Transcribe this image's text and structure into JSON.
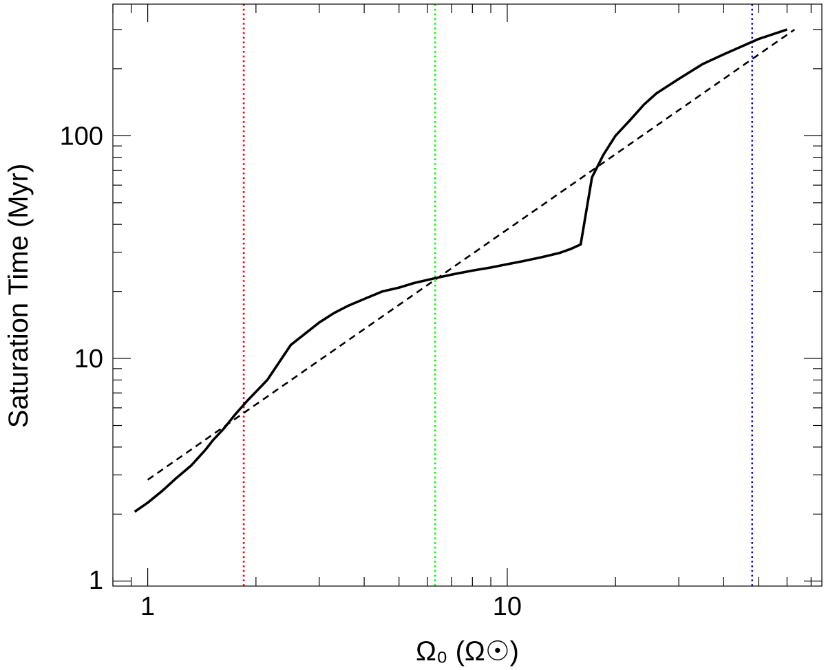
{
  "chart_data": {
    "type": "line",
    "xlabel": "Ω₀  (Ω☉)",
    "ylabel": "Saturation Time (Myr)",
    "x_scale": "log",
    "y_scale": "log",
    "xlim": [
      0.8,
      75
    ],
    "ylim": [
      0.95,
      390
    ],
    "x_ticks": [
      {
        "value": 1,
        "label": "1"
      },
      {
        "value": 10,
        "label": "10"
      }
    ],
    "y_ticks": [
      {
        "value": 1,
        "label": "1"
      },
      {
        "value": 10,
        "label": "10"
      },
      {
        "value": 100,
        "label": "100"
      }
    ],
    "grid": false,
    "series": [
      {
        "style": "solid",
        "color": "#000000",
        "x": [
          0.92,
          1.0,
          1.1,
          1.2,
          1.32,
          1.45,
          1.52,
          1.62,
          1.75,
          1.9,
          2.15,
          2.5,
          3.0,
          3.3,
          3.6,
          4.0,
          4.5,
          5.0,
          5.5,
          6.2,
          7.0,
          8.0,
          9.0,
          10.0,
          11.0,
          12.5,
          14.0,
          15.0,
          16.0,
          17.2,
          18.5,
          20.0,
          22.0,
          24.0,
          26.0,
          30.0,
          35.0,
          40.0,
          50.0,
          60.0
        ],
        "y": [
          2.05,
          2.25,
          2.55,
          2.9,
          3.3,
          3.9,
          4.3,
          4.8,
          5.6,
          6.5,
          8.0,
          11.5,
          14.5,
          16.0,
          17.2,
          18.5,
          20.0,
          20.8,
          21.8,
          22.8,
          23.8,
          24.8,
          25.6,
          26.5,
          27.3,
          28.5,
          29.8,
          31.0,
          32.5,
          65.0,
          82.0,
          100.0,
          118.0,
          138.0,
          155.0,
          180.0,
          210.0,
          232.0,
          272.0,
          300.0
        ]
      },
      {
        "style": "dashed",
        "color": "#000000",
        "x": [
          1.0,
          63.0
        ],
        "y": [
          2.85,
          300.0
        ]
      }
    ],
    "vlines": [
      {
        "x": 1.85,
        "color": "#ff0000",
        "style": "dotted"
      },
      {
        "x": 6.3,
        "color": "#00ff00",
        "style": "dotted"
      },
      {
        "x": 48.0,
        "color": "#0000ff",
        "style": "dotted"
      }
    ]
  }
}
